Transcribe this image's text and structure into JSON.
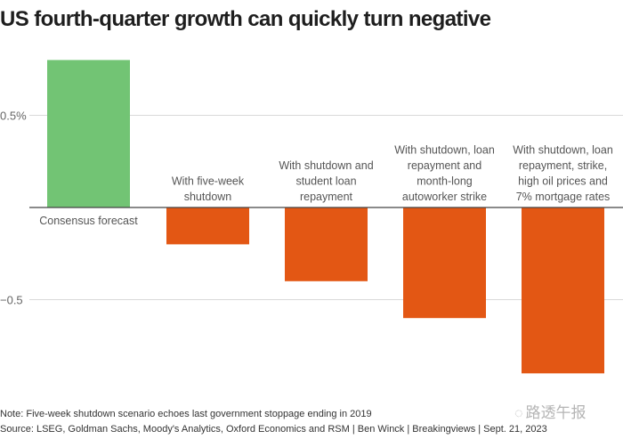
{
  "chart_data": {
    "type": "bar",
    "title": "US fourth-quarter growth can quickly turn negative",
    "categories": [
      [
        "Consensus forecast"
      ],
      [
        "With five-week",
        "shutdown"
      ],
      [
        "With shutdown and",
        "student loan",
        "repayment"
      ],
      [
        "With shutdown, loan",
        "repayment and",
        "month-long",
        "autoworker strike"
      ],
      [
        "With shutdown, loan",
        "repayment, strike,",
        "high oil prices and",
        "7% mortgage rates"
      ]
    ],
    "values": [
      0.8,
      -0.2,
      -0.4,
      -0.6,
      -0.9
    ],
    "colors": [
      "#72c474",
      "#e35714",
      "#e35714",
      "#e35714",
      "#e35714"
    ],
    "ylim": [
      -1.0,
      0.85
    ],
    "yticks": [
      {
        "value": 0.5,
        "label": "0.5%"
      },
      {
        "value": -0.5,
        "label": "−0.5"
      }
    ],
    "xlabel": "",
    "ylabel": "",
    "grid": true,
    "units": "%"
  },
  "footer": {
    "note": "Note: Five-week shutdown scenario echoes last government stoppage ending in 2019",
    "source": "Source: LSEG, Goldman Sachs, Moody's Analytics, Oxford Economics and RSM | Ben Winck | Breakingviews | Sept. 21, 2023"
  },
  "watermark": {
    "icon": "wechat-icon",
    "text": "路透午报"
  }
}
